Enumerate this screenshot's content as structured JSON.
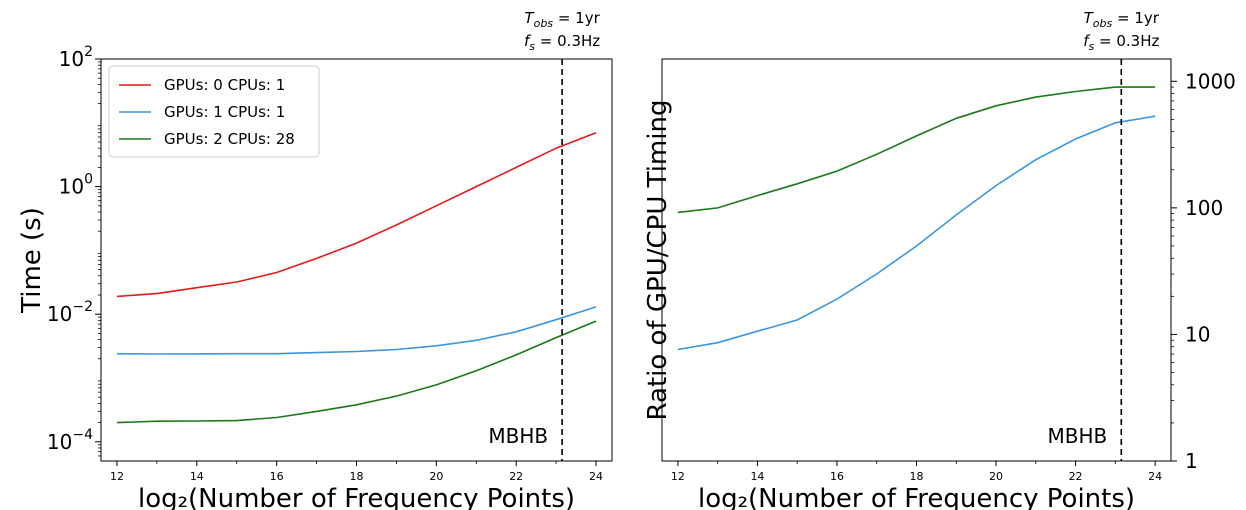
{
  "chart_data": [
    {
      "type": "line",
      "xlabel": "log₂(Number of Frequency Points)",
      "ylabel": "Time (s)",
      "xlim": [
        11.6,
        24.4
      ],
      "ylim": [
        5e-05,
        100
      ],
      "yscale": "log",
      "grid": false,
      "legend": "top-left",
      "x_ticks": [
        12,
        14,
        16,
        18,
        20,
        22,
        24
      ],
      "y_ticks": [
        {
          "value": 0.0001,
          "base": "10",
          "exp": "−4"
        },
        {
          "value": 0.01,
          "base": "10",
          "exp": "−2"
        },
        {
          "value": 1,
          "base": "10",
          "exp": "0"
        },
        {
          "value": 100,
          "base": "10",
          "exp": "2"
        }
      ],
      "x": [
        12,
        13,
        14,
        15,
        16,
        17,
        18,
        19,
        20,
        21,
        22,
        23,
        24
      ],
      "series": [
        {
          "name": "GPUs: 0 CPUs: 1",
          "color": "#e41a1c",
          "values": [
            0.019,
            0.021,
            0.026,
            0.032,
            0.045,
            0.075,
            0.13,
            0.25,
            0.5,
            1.0,
            2.0,
            4.0,
            7.0
          ]
        },
        {
          "name": "GPUs: 1 CPUs: 1",
          "color": "#3a96e0",
          "values": [
            0.0024,
            0.00238,
            0.00239,
            0.0024,
            0.0024,
            0.0025,
            0.0026,
            0.0028,
            0.0032,
            0.0039,
            0.0053,
            0.0082,
            0.013
          ]
        },
        {
          "name": "GPUs: 2 CPUs: 28",
          "color": "#1a7a1a",
          "values": [
            0.0002,
            0.00021,
            0.000212,
            0.000215,
            0.00024,
            0.0003,
            0.00038,
            0.00052,
            0.00078,
            0.0013,
            0.0023,
            0.0043,
            0.0078
          ]
        }
      ],
      "vline": {
        "x": 23.15,
        "label": "MBHB",
        "color": "#000000",
        "style": "dashed"
      },
      "annotation": {
        "line1": "T",
        "line1_sub": "obs",
        "line1_rest": " = 1yr",
        "line2": "f",
        "line2_sub": "s",
        "line2_rest": " = 0.3Hz"
      }
    },
    {
      "type": "line",
      "xlabel": "log₂(Number of Frequency Points)",
      "ylabel": "Ratio of GPU/CPU Timing",
      "xlim": [
        11.6,
        24.4
      ],
      "ylim": [
        1,
        1500
      ],
      "yscale": "log",
      "yaxis_position": "right",
      "grid": false,
      "x_ticks": [
        12,
        14,
        16,
        18,
        20,
        22,
        24
      ],
      "y_ticks": [
        {
          "value": 1,
          "label": "1"
        },
        {
          "value": 10,
          "label": "10"
        },
        {
          "value": 100,
          "label": "100"
        },
        {
          "value": 1000,
          "label": "1000"
        }
      ],
      "x": [
        12,
        13,
        14,
        15,
        16,
        17,
        18,
        19,
        20,
        21,
        22,
        23,
        24
      ],
      "series": [
        {
          "color": "#1a7a1a",
          "values": [
            92,
            100,
            125,
            155,
            195,
            265,
            370,
            510,
            640,
            750,
            830,
            900,
            900
          ]
        },
        {
          "color": "#3a96e0",
          "values": [
            7.6,
            8.6,
            10.6,
            13,
            19,
            30,
            50,
            88,
            150,
            240,
            350,
            470,
            530
          ]
        }
      ],
      "vline": {
        "x": 23.15,
        "label": "MBHB",
        "color": "#000000",
        "style": "dashed"
      },
      "annotation": {
        "line1": "T",
        "line1_sub": "obs",
        "line1_rest": " = 1yr",
        "line2": "f",
        "line2_sub": "s",
        "line2_rest": " = 0.3Hz"
      }
    }
  ]
}
